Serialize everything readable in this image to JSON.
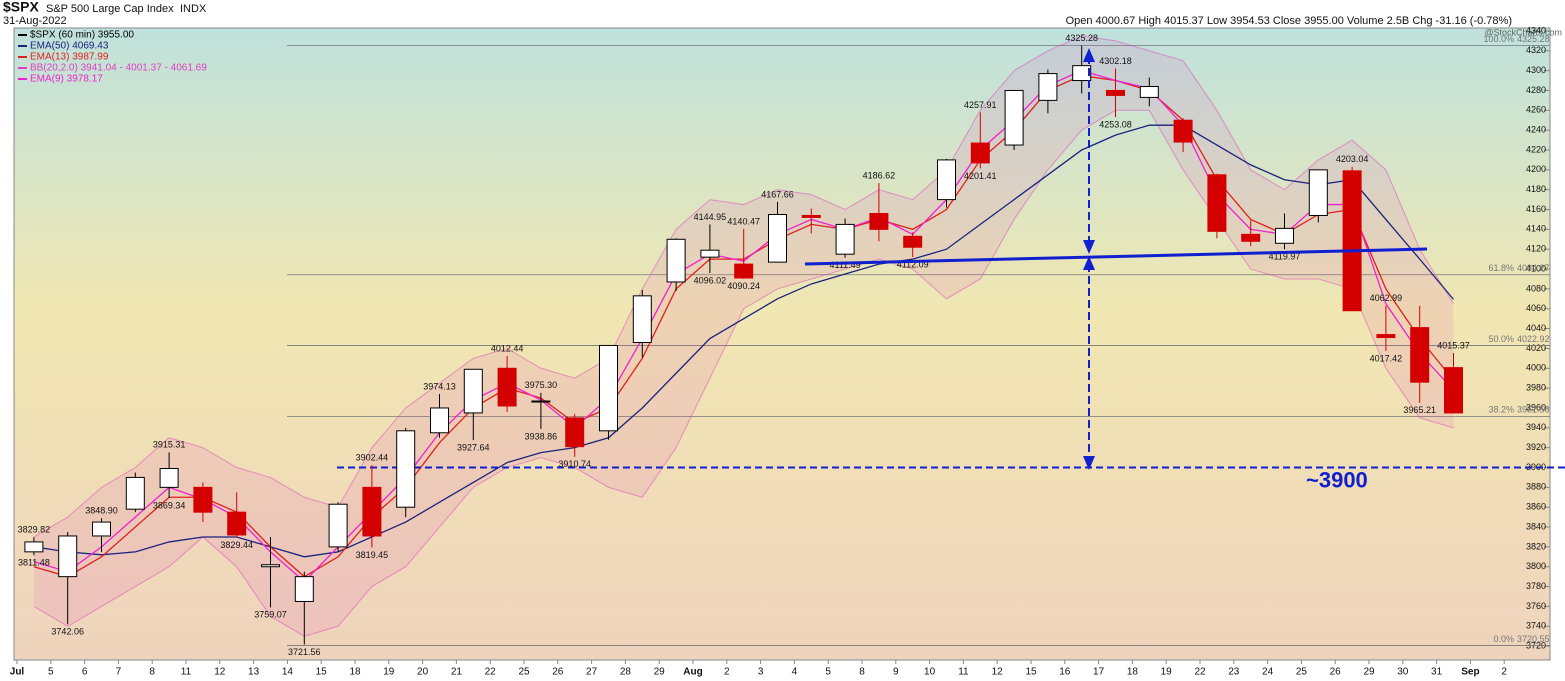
{
  "chart_data": {
    "type": "candlestick",
    "title": "$SPX",
    "subtitle": "S&P 500 Large Cap Index",
    "exchange": "INDX",
    "date": "31-Aug-2022",
    "quote": "Open 4000.67 High 4015.37 Low 3954.53 Close 3955.00 Volume 2.5B Chg -31.16 (-0.78%)",
    "source": "@StockCharts.com",
    "price_legend": "$SPX (60 min) 3955.00",
    "categories": [
      "Jul",
      "5",
      "6",
      "7",
      "8",
      "11",
      "12",
      "13",
      "14",
      "15",
      "18",
      "19",
      "20",
      "21",
      "22",
      "25",
      "26",
      "27",
      "28",
      "29",
      "Aug",
      "2",
      "3",
      "4",
      "5",
      "8",
      "9",
      "10",
      "11",
      "12",
      "15",
      "16",
      "17",
      "18",
      "19",
      "22",
      "23",
      "24",
      "25",
      "26",
      "29",
      "30",
      "31",
      "Sep",
      "2"
    ],
    "open": [
      3815,
      3790,
      3831,
      3858,
      3880,
      3880,
      3855,
      3800,
      3765,
      3820,
      3880,
      3860,
      3935,
      3955,
      4000,
      3966,
      3950,
      3937,
      4026,
      4087,
      4112,
      4105,
      4107,
      4154,
      4115,
      4156,
      4133,
      4170,
      4227,
      4225,
      4270,
      4290,
      4280,
      4273,
      4250,
      4195,
      4135,
      4126,
      4154,
      4199,
      4034,
      4041,
      4000.67,
      null,
      null
    ],
    "high": [
      3829.82,
      3835,
      3848.9,
      3895,
      3915.31,
      3885,
      3875,
      3830,
      3795,
      3865,
      3902.44,
      3940,
      3974.13,
      3999,
      4012.44,
      3975.3,
      3954,
      4023,
      4079,
      4131,
      4144.95,
      4140.47,
      4167.66,
      4161,
      4151,
      4186.62,
      4137,
      4211,
      4257.91,
      4280,
      4301,
      4325.28,
      4302.18,
      4293,
      4252,
      4196,
      4149,
      4156,
      4200,
      4203.04,
      4062.99,
      4063,
      4015.37,
      null,
      null
    ],
    "low": [
      3811.48,
      3742.06,
      3815,
      3855,
      3869.34,
      3845,
      3829.44,
      3759.07,
      3721.56,
      3815,
      3819.45,
      3850,
      3930,
      3927.64,
      3956,
      3938.86,
      3910.74,
      3928,
      4011,
      4078,
      4096.02,
      4090.24,
      4107,
      4136,
      4111.49,
      4128,
      4112.09,
      4162,
      4201.41,
      4220,
      4257,
      4277,
      4253.08,
      4264,
      4218,
      4131,
      4123,
      4119.97,
      4147,
      4058,
      4017.42,
      3965.21,
      3954.53,
      null,
      null
    ],
    "close": [
      3825,
      3831,
      3845,
      3890,
      3899,
      3855,
      3832,
      3802,
      3790,
      3863,
      3831,
      3937,
      3960,
      3999,
      3962,
      3967,
      3921,
      4023,
      4073,
      4130,
      4119,
      4091,
      4155,
      4152,
      4145,
      4140,
      4122,
      4210,
      4207,
      4280,
      4297,
      4305,
      4275,
      4284,
      4228,
      4138,
      4128,
      4141,
      4200,
      4058,
      4031,
      3986,
      3955,
      null,
      null
    ],
    "high_labels": [
      "3829.82",
      null,
      "3848.90",
      null,
      "3915.31",
      null,
      null,
      null,
      null,
      null,
      "3902.44",
      null,
      "3974.13",
      null,
      "4012.44",
      "3975.30",
      null,
      null,
      null,
      null,
      "4144.95",
      "4140.47",
      "4167.66",
      null,
      null,
      "4186.62",
      null,
      null,
      "4257.91",
      null,
      null,
      "4325.28",
      "4302.18",
      null,
      null,
      null,
      null,
      null,
      null,
      "4203.04",
      "4062.99",
      null,
      "4015.37",
      null,
      null
    ],
    "low_labels": [
      "3811.48",
      "3742.06",
      null,
      null,
      "3869.34",
      null,
      "3829.44",
      "3759.07",
      "3721.56",
      null,
      "3819.45",
      null,
      null,
      "3927.64",
      null,
      "3938.86",
      "3910.74",
      null,
      null,
      null,
      "4096.02",
      "4090.24",
      null,
      null,
      "4111.49",
      null,
      "4112.09",
      null,
      "4201.41",
      null,
      null,
      null,
      "4253.08",
      null,
      null,
      null,
      null,
      "4119.97",
      null,
      null,
      "4017.42",
      "3965.21",
      null,
      null,
      null
    ],
    "up_color": "#ffffff",
    "down_color": "#d40000",
    "bands": {
      "name": "BB(20,2.0) 3941.04 - 4001.37 - 4061.69",
      "color": "#e040c0",
      "upper": [
        3830,
        3850,
        3880,
        3900,
        3930,
        3920,
        3900,
        3890,
        3870,
        3860,
        3920,
        3960,
        3985,
        4010,
        4020,
        4000,
        3990,
        4010,
        4080,
        4140,
        4170,
        4165,
        4180,
        4175,
        4160,
        4180,
        4170,
        4200,
        4260,
        4300,
        4320,
        4335,
        4330,
        4320,
        4310,
        4260,
        4200,
        4180,
        4210,
        4230,
        4200,
        4120,
        4065,
        null,
        null
      ],
      "lower": [
        3760,
        3740,
        3760,
        3780,
        3800,
        3830,
        3800,
        3750,
        3730,
        3740,
        3780,
        3800,
        3840,
        3880,
        3900,
        3910,
        3900,
        3880,
        3870,
        3920,
        3990,
        4060,
        4080,
        4090,
        4100,
        4110,
        4100,
        4070,
        4090,
        4150,
        4200,
        4240,
        4260,
        4260,
        4200,
        4150,
        4100,
        4090,
        4090,
        4080,
        4000,
        3950,
        3940,
        null,
        null
      ]
    },
    "series": [
      {
        "name": "EMA(50) 4069.43",
        "color": "#1a237e",
        "values": [
          3820,
          3815,
          3812,
          3815,
          3825,
          3830,
          3830,
          3820,
          3810,
          3815,
          3830,
          3845,
          3865,
          3885,
          3905,
          3915,
          3920,
          3930,
          3960,
          3995,
          4030,
          4050,
          4070,
          4085,
          4095,
          4105,
          4110,
          4120,
          4145,
          4170,
          4195,
          4220,
          4235,
          4245,
          4245,
          4225,
          4205,
          4190,
          4185,
          4190,
          4150,
          4110,
          4069.43,
          null,
          null
        ]
      },
      {
        "name": "EMA(13) 3987.99",
        "color": "#e0201c",
        "values": [
          3800,
          3790,
          3810,
          3840,
          3870,
          3870,
          3855,
          3820,
          3790,
          3810,
          3850,
          3880,
          3925,
          3960,
          3980,
          3970,
          3945,
          3960,
          4010,
          4080,
          4110,
          4110,
          4130,
          4145,
          4140,
          4150,
          4140,
          4160,
          4210,
          4240,
          4280,
          4295,
          4290,
          4280,
          4250,
          4190,
          4150,
          4135,
          4155,
          4160,
          4080,
          4030,
          3987.99,
          null,
          null
        ]
      },
      {
        "name": "EMA(9) 3978.17",
        "color": "#f020d0",
        "values": [
          3805,
          3795,
          3820,
          3850,
          3880,
          3868,
          3850,
          3815,
          3785,
          3820,
          3855,
          3890,
          3935,
          3968,
          3985,
          3968,
          3940,
          3970,
          4030,
          4095,
          4115,
          4108,
          4135,
          4150,
          4140,
          4152,
          4135,
          4170,
          4220,
          4250,
          4285,
          4300,
          4290,
          4282,
          4245,
          4175,
          4140,
          4135,
          4165,
          4165,
          4065,
          4015,
          3978.17,
          null,
          null
        ]
      }
    ],
    "fib_levels": [
      {
        "label": "100.0%",
        "value": 4325.28
      },
      {
        "label": "61.8%",
        "value": 4094.27
      },
      {
        "label": "50.0%",
        "value": 4022.92
      },
      {
        "label": "38.2%",
        "value": 3951.56
      },
      {
        "label": "0.0%",
        "value": 3720.55
      }
    ],
    "target": {
      "label": "~3900",
      "value": 3900,
      "color": "#1020d0"
    },
    "ylim": [
      3706,
      4350
    ],
    "yticks": [
      3720,
      3740,
      3760,
      3780,
      3800,
      3820,
      3840,
      3860,
      3880,
      3900,
      3920,
      3940,
      3960,
      3980,
      4000,
      4020,
      4040,
      4060,
      4080,
      4100,
      4120,
      4140,
      4160,
      4180,
      4200,
      4220,
      4240,
      4260,
      4280,
      4300,
      4320,
      4340
    ]
  }
}
